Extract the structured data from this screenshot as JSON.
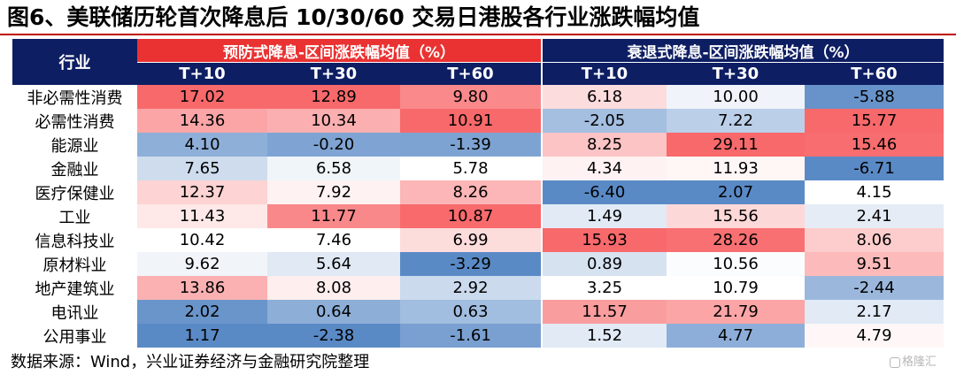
{
  "title": "图6、美联储历轮首次降息后 10/30/60 交易日港股各行业涨跌幅均值",
  "source": "数据来源：Wind，兴业证券经济与金融研究院整理",
  "watermark": "格隆汇",
  "table": {
    "corner_label": "行业",
    "group_headers": [
      "预防式降息-区间涨跌幅均值（%）",
      "衰退式降息-区间涨跌幅均值（%）"
    ],
    "sub_headers": [
      "T+10",
      "T+30",
      "T+60",
      "T+10",
      "T+30",
      "T+60"
    ]
  },
  "colors": {
    "header_navy": "#0e1e63",
    "header_red": "#ea3232",
    "high": "#f8696b",
    "mid": "#ffffff",
    "low": "#5a8ac6"
  },
  "chart_data": {
    "type": "heatmap",
    "title": "图6、美联储历轮首次降息后 10/30/60 交易日港股各行业涨跌幅均值",
    "groups": [
      "预防式降息-区间涨跌幅均值（%）",
      "衰退式降息-区间涨跌幅均值（%）"
    ],
    "columns": [
      "T+10",
      "T+30",
      "T+60",
      "T+10",
      "T+30",
      "T+60"
    ],
    "rows": [
      "非必需性消费",
      "必需性消费",
      "能源业",
      "金融业",
      "医疗保健业",
      "工业",
      "信息科技业",
      "原材料业",
      "地产建筑业",
      "电讯业",
      "公用事业"
    ],
    "values": [
      [
        "17.02",
        "12.89",
        "9.80",
        "6.18",
        "10.00",
        "-5.88"
      ],
      [
        "14.36",
        "10.34",
        "10.91",
        "-2.05",
        "7.22",
        "15.77"
      ],
      [
        "4.10",
        "-0.20",
        "-1.39",
        "8.25",
        "29.11",
        "15.46"
      ],
      [
        "7.65",
        "6.58",
        "5.78",
        "4.34",
        "11.93",
        "-6.71"
      ],
      [
        "12.37",
        "7.92",
        "8.26",
        "-6.40",
        "2.07",
        "4.15"
      ],
      [
        "11.43",
        "11.77",
        "10.87",
        "1.49",
        "15.56",
        "2.41"
      ],
      [
        "10.42",
        "7.46",
        "6.99",
        "15.93",
        "28.26",
        "8.06"
      ],
      [
        "9.62",
        "5.64",
        "-3.29",
        "0.89",
        "10.56",
        "9.51"
      ],
      [
        "13.86",
        "8.08",
        "2.92",
        "3.25",
        "10.79",
        "-2.44"
      ],
      [
        "2.02",
        "0.64",
        "0.63",
        "11.57",
        "21.79",
        "2.17"
      ],
      [
        "1.17",
        "-2.38",
        "-1.61",
        "1.52",
        "4.77",
        "4.79"
      ]
    ],
    "color_scale": "per-column three-color scale (blue low, white mid, red high)"
  }
}
